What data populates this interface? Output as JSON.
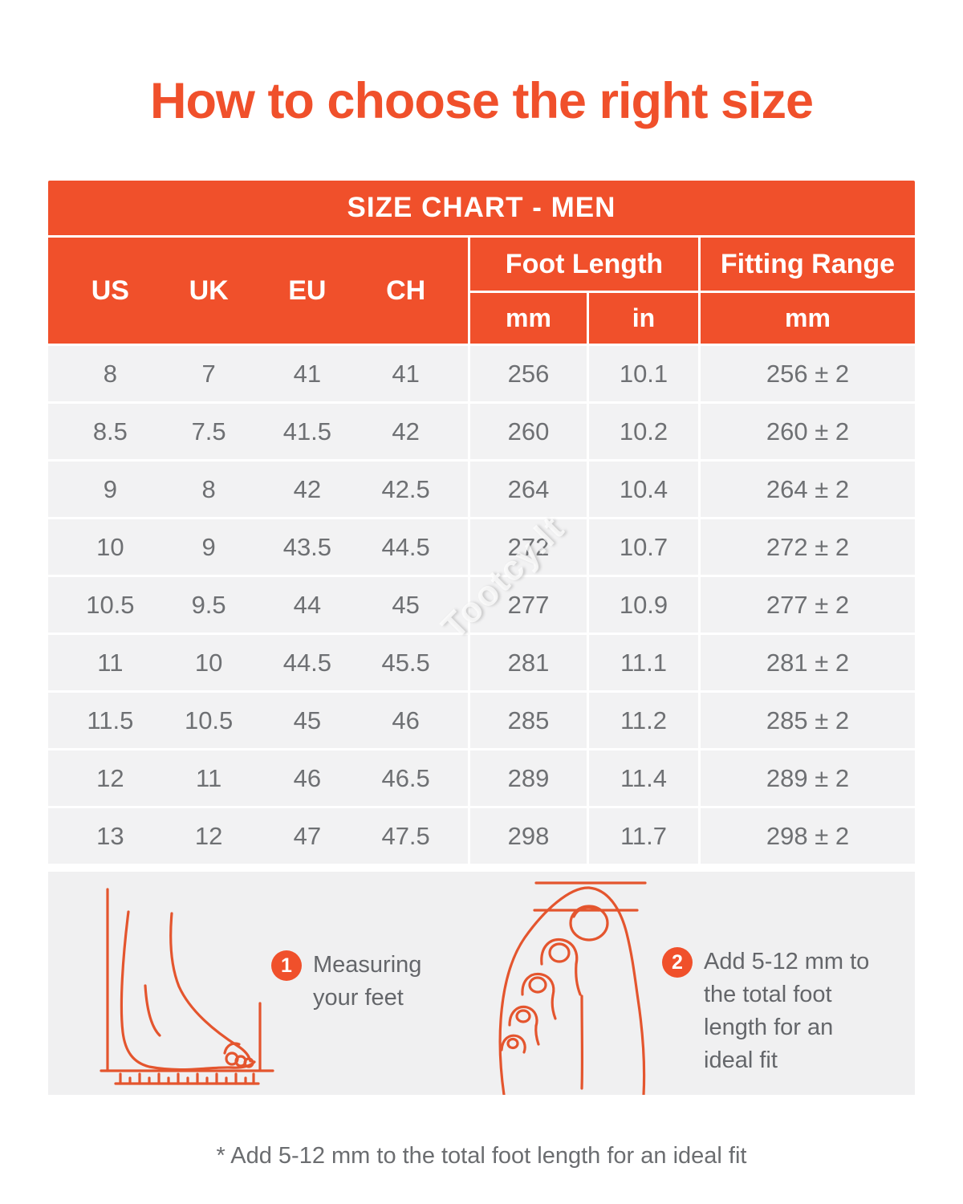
{
  "page": {
    "title": "How to choose the right size",
    "watermark": "Tootcy.lt",
    "footnote": "* Add 5-12 mm to the total foot length for an ideal fit"
  },
  "colors": {
    "accent": "#F0502B",
    "header_text": "#FFFFFF",
    "cell_text": "#6E7073",
    "row_bg": "#F2F2F3",
    "panel_bg": "#F0F0F1",
    "illustration_stroke": "#E4552E"
  },
  "size_chart": {
    "title": "SIZE CHART - MEN",
    "size_systems": [
      "US",
      "UK",
      "EU",
      "CH"
    ],
    "foot_length_label": "Foot Length",
    "fitting_range_label": "Fitting Range",
    "units": {
      "foot_mm": "mm",
      "foot_in": "in",
      "fitting_mm": "mm"
    },
    "rows": [
      [
        "8",
        "7",
        "41",
        "41",
        "256",
        "10.1",
        "256 ± 2"
      ],
      [
        "8.5",
        "7.5",
        "41.5",
        "42",
        "260",
        "10.2",
        "260 ± 2"
      ],
      [
        "9",
        "8",
        "42",
        "42.5",
        "264",
        "10.4",
        "264 ± 2"
      ],
      [
        "10",
        "9",
        "43.5",
        "44.5",
        "272",
        "10.7",
        "272 ± 2"
      ],
      [
        "10.5",
        "9.5",
        "44",
        "45",
        "277",
        "10.9",
        "277 ± 2"
      ],
      [
        "11",
        "10",
        "44.5",
        "45.5",
        "281",
        "11.1",
        "281 ± 2"
      ],
      [
        "11.5",
        "10.5",
        "45",
        "46",
        "285",
        "11.2",
        "285 ± 2"
      ],
      [
        "12",
        "11",
        "46",
        "46.5",
        "289",
        "11.4",
        "289 ± 2"
      ],
      [
        "13",
        "12",
        "47",
        "47.5",
        "298",
        "11.7",
        "298 ± 2"
      ]
    ]
  },
  "instructions": [
    {
      "number": "1",
      "text": "Measuring your feet"
    },
    {
      "number": "2",
      "text": "Add 5-12 mm to the total foot length for an ideal fit"
    }
  ]
}
